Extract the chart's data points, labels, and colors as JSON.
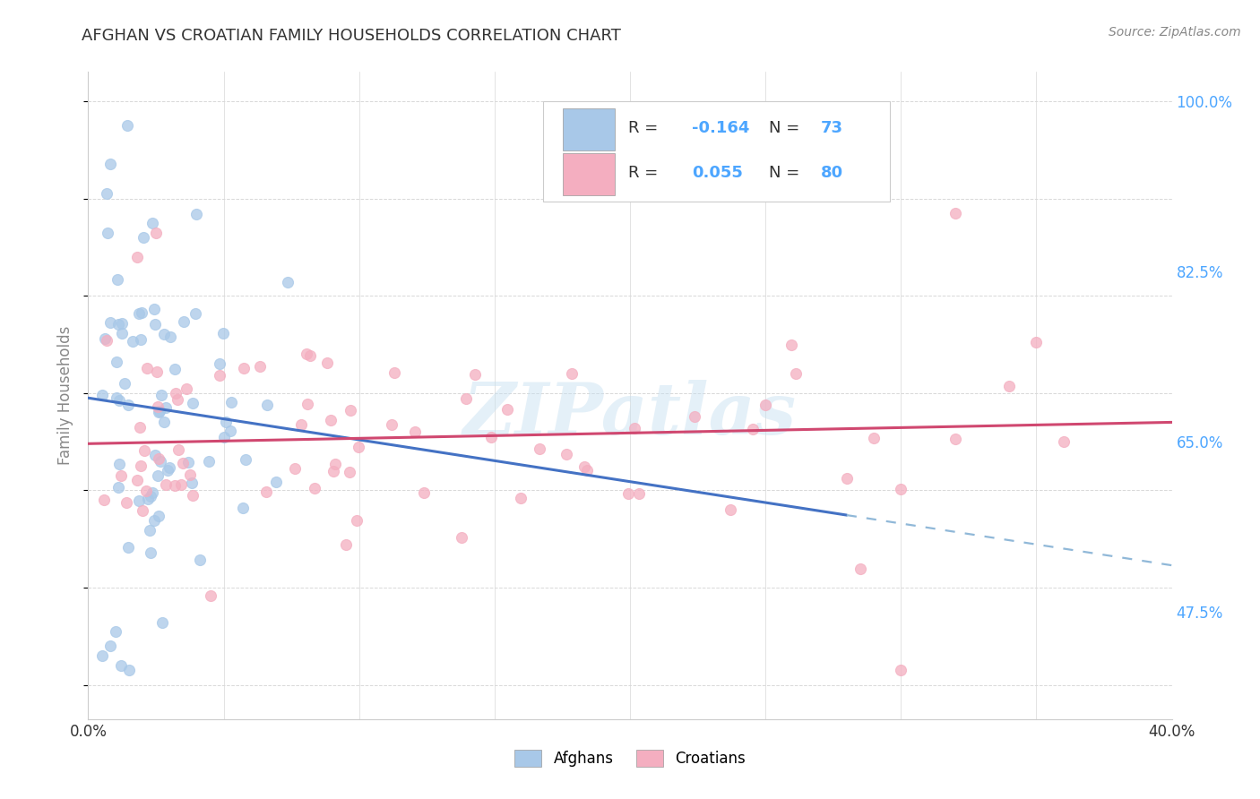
{
  "title": "AFGHAN VS CROATIAN FAMILY HOUSEHOLDS CORRELATION CHART",
  "source": "Source: ZipAtlas.com",
  "ylabel": "Family Households",
  "x_min": 0.0,
  "x_max": 0.4,
  "y_min": 0.365,
  "y_max": 1.03,
  "afghan_R": -0.164,
  "afghan_N": 73,
  "croatian_R": 0.055,
  "croatian_N": 80,
  "afghan_color": "#a8c8e8",
  "croatian_color": "#f4aec0",
  "afghan_line_color": "#4472c4",
  "croatian_line_color": "#d04870",
  "dashed_line_color": "#90b8d8",
  "watermark_text": "ZIPatlas",
  "ytick_values": [
    1.0,
    0.825,
    0.65,
    0.475
  ],
  "ytick_labels": [
    "100.0%",
    "82.5%",
    "65.0%",
    "47.5%"
  ],
  "xtick_labels_left": "0.0%",
  "xtick_labels_right": "40.0%",
  "legend_label_blue": "R = -0.164   N = 73",
  "legend_label_pink": "R =  0.055   N = 80",
  "bottom_legend_afghans": "Afghans",
  "bottom_legend_croatians": "Croatians",
  "grid_color": "#d8d8d8",
  "title_color": "#333333",
  "source_color": "#888888",
  "ylabel_color": "#888888",
  "tick_label_color": "#4da6ff",
  "x_label_color": "#333333",
  "legend_R_color": "#333333",
  "legend_N_color": "#4da6ff",
  "legend_val_color": "#4da6ff"
}
